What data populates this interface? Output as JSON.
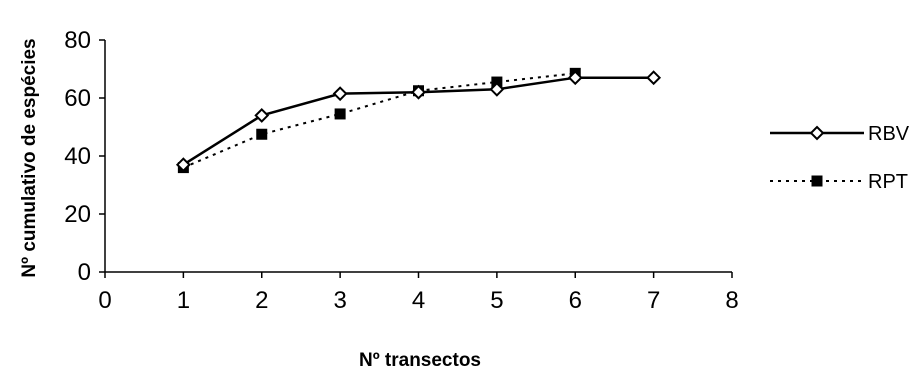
{
  "chart_data": {
    "type": "line",
    "title": "",
    "xlabel": "Nº transectos",
    "ylabel": "Nº cumulativo de espécies",
    "xlim": [
      0,
      8
    ],
    "ylim": [
      0,
      80
    ],
    "xticks": [
      "0",
      "1",
      "2",
      "3",
      "4",
      "5",
      "6",
      "7",
      "8"
    ],
    "yticks": [
      "0",
      "20",
      "40",
      "60",
      "80"
    ],
    "grid": false,
    "legend_position": "right",
    "series": [
      {
        "name": "RBV",
        "marker": "open-diamond",
        "line_style": "solid",
        "color": "#000000",
        "x": [
          1,
          2,
          3,
          4,
          5,
          6,
          7
        ],
        "y": [
          37,
          54,
          61.5,
          62,
          63,
          67,
          67
        ]
      },
      {
        "name": "RPT",
        "marker": "filled-square",
        "line_style": "dotted",
        "color": "#000000",
        "x": [
          1,
          2,
          3,
          4,
          5,
          6
        ],
        "y": [
          36,
          47.5,
          54.5,
          62.5,
          65.5,
          68.5
        ]
      }
    ]
  }
}
